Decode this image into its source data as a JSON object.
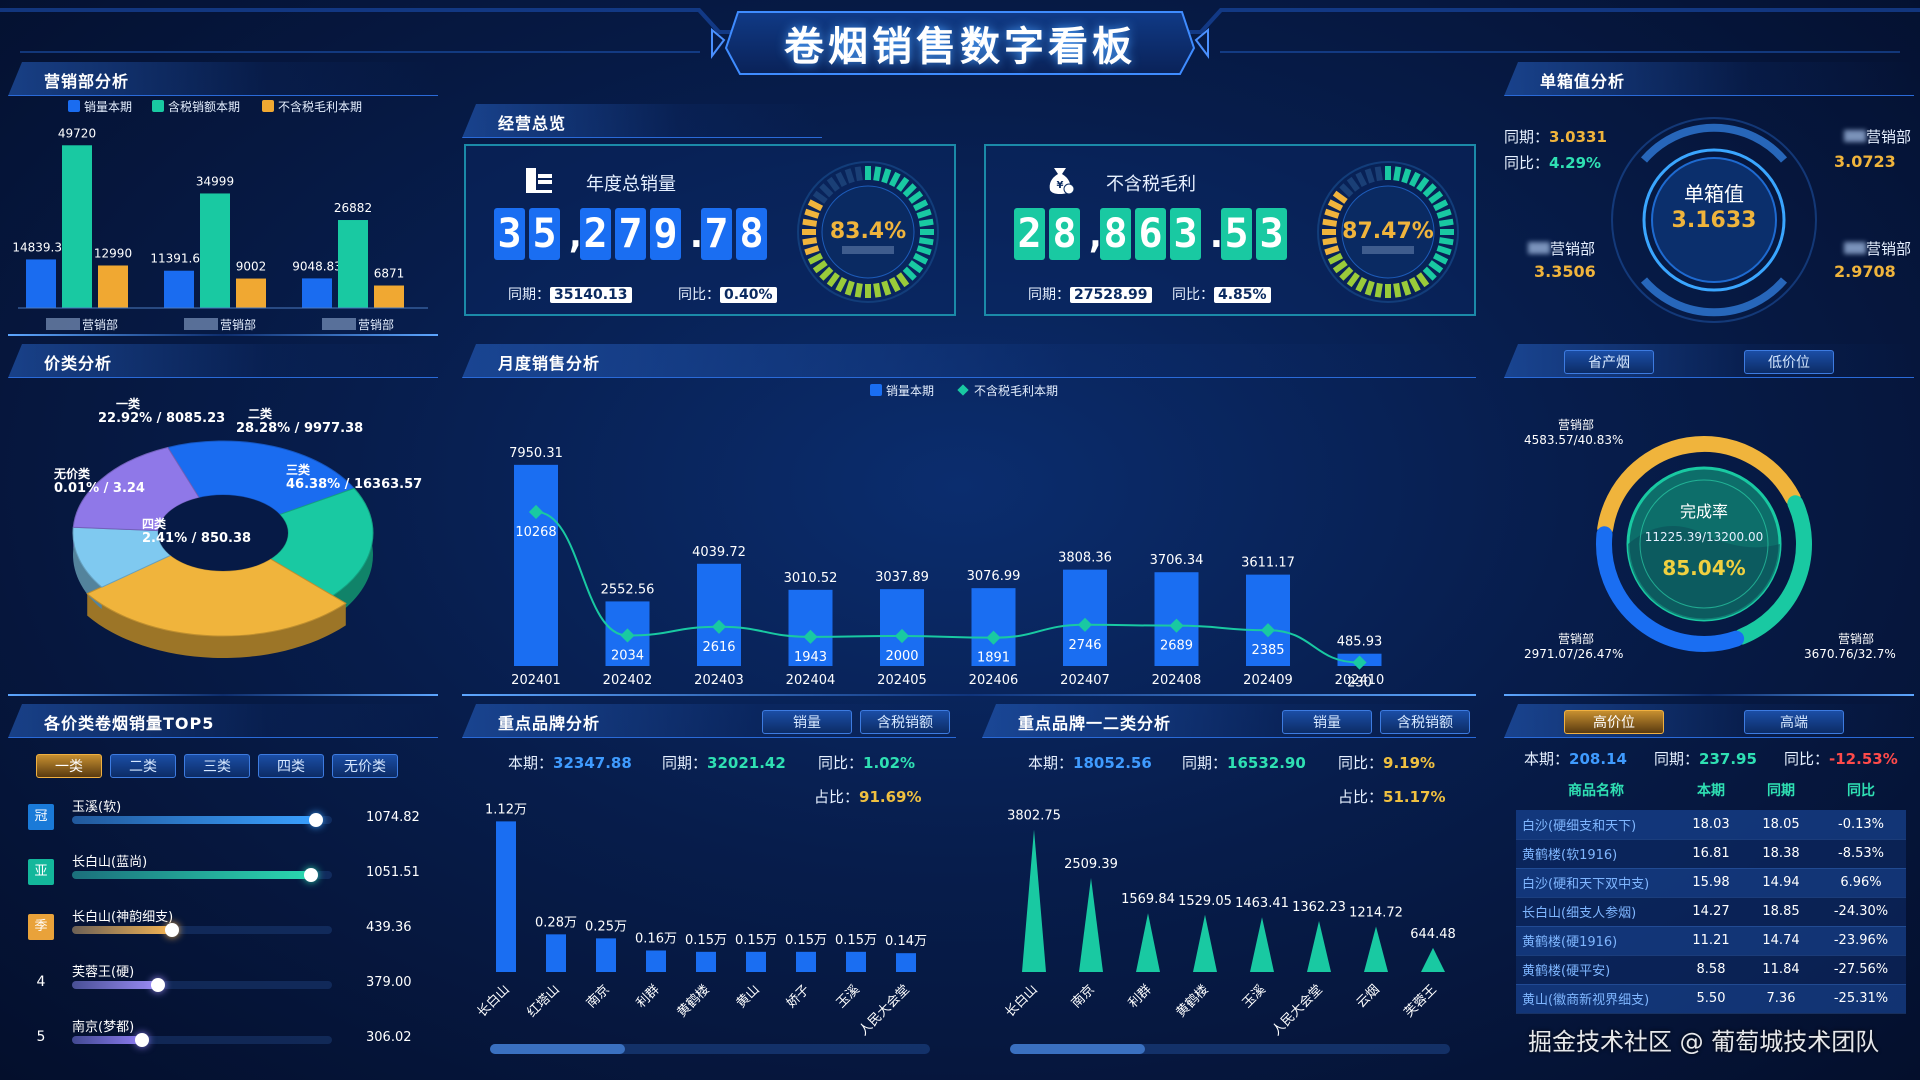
{
  "title": "卷烟销售数字看板",
  "sales_dept": {
    "title": "营销部分析",
    "legend": [
      "销量本期",
      "含税销额本期",
      "不含税毛利本期"
    ],
    "groups": [
      {
        "label": "营销部",
        "values": [
          14839.33,
          49720,
          12990
        ]
      },
      {
        "label": "营销部",
        "values": [
          11391.64,
          34999,
          9002
        ]
      },
      {
        "label": "营销部",
        "values": [
          9048.83,
          26882,
          6871
        ]
      }
    ],
    "labels": [
      [
        "14839.33",
        "49720",
        "12990"
      ],
      [
        "11391.64",
        "34999",
        "9002"
      ],
      [
        "9048.83",
        "26882",
        "6871"
      ]
    ]
  },
  "price": {
    "title": "价类分析",
    "slices": [
      {
        "name": "一类",
        "pct": 22.92,
        "val": 8085.23,
        "text": "22.92% / 8085.23",
        "color": "#1a6cf0"
      },
      {
        "name": "二类",
        "pct": 28.28,
        "val": 9977.38,
        "text": "28.28% / 9977.38",
        "color": "#19c9a2"
      },
      {
        "name": "三类",
        "pct": 46.38,
        "val": 16363.57,
        "text": "46.38% / 16363.57",
        "color": "#f0b43c"
      },
      {
        "name": "四类",
        "pct": 2.41,
        "val": 850.38,
        "text": "2.41% / 850.38",
        "color": "#8f78e8"
      },
      {
        "name": "无价类",
        "pct": 0.01,
        "val": 3.24,
        "text": "0.01% / 3.24",
        "color": "#7fc9f0"
      }
    ]
  },
  "top5": {
    "title": "各价类卷烟销量TOP5",
    "tabs": [
      "一类",
      "二类",
      "三类",
      "四类",
      "无价类"
    ],
    "items": [
      {
        "rank": "冠",
        "name": "玉溪(软)",
        "value": "1074.82",
        "v": 1074.82,
        "color": "#3aa0ff",
        "badge": "#1a7ad8"
      },
      {
        "rank": "亚",
        "name": "长白山(蓝尚)",
        "value": "1051.51",
        "v": 1051.51,
        "color": "#2ad8b0",
        "badge": "#13b79b"
      },
      {
        "rank": "季",
        "name": "长白山(神韵细支)",
        "value": "439.36",
        "v": 439.36,
        "color": "#f4b454",
        "badge": "#e9a23a"
      },
      {
        "rank": "4",
        "name": "芙蓉王(硬)",
        "value": "379.00",
        "v": 379.0,
        "color": "#9b8cf5",
        "badge": ""
      },
      {
        "rank": "5",
        "name": "南京(梦都)",
        "value": "306.02",
        "v": 306.02,
        "color": "#8c7cf0",
        "badge": ""
      }
    ]
  },
  "overview": {
    "title": "经营总览",
    "annual": {
      "title": "年度总销量",
      "digits": [
        "3",
        "5",
        ",",
        "2",
        "7",
        "9",
        ".",
        "7",
        "8"
      ],
      "pct": "83.4%",
      "p": 83.4,
      "same_label": "同期：",
      "same": "35140.13",
      "yoy_label": "同比：",
      "yoy": "0.40%"
    },
    "profit": {
      "title": "不含税毛利",
      "digits": [
        "2",
        "8",
        ",",
        "8",
        "6",
        "3",
        ".",
        "5",
        "3"
      ],
      "pct": "87.47%",
      "p": 87.47,
      "same_label": "同期：",
      "same": "27528.99",
      "yoy_label": "同比：",
      "yoy": "4.85%"
    }
  },
  "monthly": {
    "title": "月度销售分析",
    "legend": [
      "销量本期",
      "不含税毛利本期"
    ],
    "chart_data": {
      "type": "bar",
      "categories": [
        "202401",
        "202402",
        "202403",
        "202404",
        "202405",
        "202406",
        "202407",
        "202408",
        "202409",
        "202410"
      ],
      "series": [
        {
          "name": "销量本期",
          "values": [
            7950.31,
            2552.56,
            4039.72,
            3010.52,
            3037.89,
            3076.99,
            3808.36,
            3706.34,
            3611.17,
            485.93
          ]
        },
        {
          "name": "不含税毛利本期",
          "values": [
            10268,
            2034,
            2616,
            1943,
            2000,
            1891,
            2746,
            2689,
            2385,
            230
          ]
        }
      ],
      "bar_labels": [
        "7950.31",
        "2552.56",
        "4039.72",
        "3010.52",
        "3037.89",
        "3076.99",
        "3808.36",
        "3706.34",
        "3611.17",
        "485.93"
      ],
      "line_labels": [
        "10268",
        "2034",
        "2616",
        "1943",
        "2000",
        "1891",
        "2746",
        "2689",
        "2385",
        "230"
      ]
    }
  },
  "brand": {
    "title": "重点品牌分析",
    "tabs": [
      "销量",
      "含税销额"
    ],
    "cur_label": "本期：",
    "cur": "32347.88",
    "same_label": "同期：",
    "same": "32021.42",
    "yoy_label": "同比：",
    "yoy": "1.02%",
    "share_label": "占比：",
    "share": "91.69%",
    "chart_data": {
      "type": "bar",
      "categories": [
        "长白山",
        "红塔山",
        "南京",
        "利群",
        "黄鹤楼",
        "黄山",
        "娇子",
        "玉溪",
        "人民大会堂"
      ],
      "values": [
        1.12,
        0.28,
        0.25,
        0.16,
        0.15,
        0.15,
        0.15,
        0.15,
        0.14
      ],
      "labels": [
        "1.12万",
        "0.28万",
        "0.25万",
        "0.16万",
        "0.15万",
        "0.15万",
        "0.15万",
        "0.15万",
        "0.14万"
      ]
    }
  },
  "brand12": {
    "title": "重点品牌一二类分析",
    "tabs": [
      "销量",
      "含税销额"
    ],
    "cur_label": "本期：",
    "cur": "18052.56",
    "same_label": "同期：",
    "same": "16532.90",
    "yoy_label": "同比：",
    "yoy": "9.19%",
    "share_label": "占比：",
    "share": "51.17%",
    "chart_data": {
      "type": "bar",
      "categories": [
        "长白山",
        "南京",
        "利群",
        "黄鹤楼",
        "玉溪",
        "人民大会堂",
        "云烟",
        "芙蓉王"
      ],
      "values": [
        3802.75,
        2509.39,
        1569.84,
        1529.05,
        1463.41,
        1362.23,
        1214.72,
        644.48
      ],
      "labels": [
        "3802.75",
        "2509.39",
        "1569.84",
        "1529.05",
        "1463.41",
        "1362.23",
        "1214.72",
        "644.48"
      ]
    }
  },
  "unit": {
    "title": "单箱值分析",
    "same_label": "同期：",
    "same": "3.0331",
    "yoy_label": "同比：",
    "yoy": "4.29%",
    "center_label": "单箱值",
    "center_value": "3.1633",
    "depts": [
      {
        "label": "营销部",
        "value": "3.0723"
      },
      {
        "label": "营销部",
        "value": "3.3506"
      },
      {
        "label": "营销部",
        "value": "2.9708"
      }
    ]
  },
  "rate": {
    "tabs": [
      "省产烟",
      "低价位"
    ],
    "title": "完成率",
    "text": "11225.39/13200.00",
    "pct": "85.04%",
    "depts": [
      {
        "label": "营销部",
        "value": "4583.57/40.83%",
        "p": 40.83
      },
      {
        "label": "营销部",
        "value": "2971.07/26.47%",
        "p": 26.47
      },
      {
        "label": "营销部",
        "value": "3670.76/32.7%",
        "p": 32.7
      }
    ]
  },
  "high": {
    "tabs": [
      "高价位",
      "高端"
    ],
    "cur_label": "本期：",
    "cur": "208.14",
    "same_label": "同期：",
    "same": "237.95",
    "yoy_label": "同比：",
    "yoy": "-12.53%",
    "headers": [
      "商品名称",
      "本期",
      "同期",
      "同比"
    ],
    "rows": [
      [
        "白沙(硬细支和天下)",
        "18.03",
        "18.05",
        "-0.13%"
      ],
      [
        "黄鹤楼(软1916)",
        "16.81",
        "18.38",
        "-8.53%"
      ],
      [
        "白沙(硬和天下双中支)",
        "15.98",
        "14.94",
        "6.96%"
      ],
      [
        "长白山(细支人参烟)",
        "14.27",
        "18.85",
        "-24.30%"
      ],
      [
        "黄鹤楼(硬1916)",
        "11.21",
        "14.74",
        "-23.96%"
      ],
      [
        "黄鹤楼(硬平安)",
        "8.58",
        "11.84",
        "-27.56%"
      ],
      [
        "黄山(徽商新视界细支)",
        "5.50",
        "7.36",
        "-25.31%"
      ]
    ]
  },
  "watermark": "掘金技术社区 @ 葡萄城技术团队"
}
